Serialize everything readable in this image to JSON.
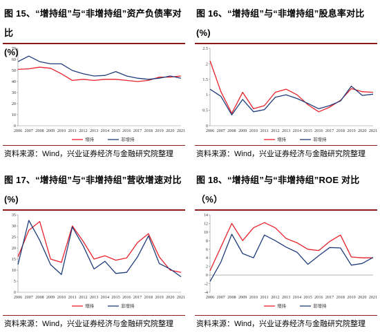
{
  "colors": {
    "series_a": "#e8202a",
    "series_b": "#1f3c7a",
    "rule": "#8b1a1a"
  },
  "source_label": "资料来源：Wind，兴业证券经济与金融研究院整理",
  "chart_data": [
    {
      "type": "line",
      "title_line1": "图 15、“增持组”与“非增持组”资产负债率对比",
      "title_line2": "(%)",
      "x": [
        "2006",
        "2007",
        "2008",
        "2009",
        "2010",
        "2011",
        "2012",
        "2013",
        "2014",
        "2015",
        "2016",
        "2017",
        "2018",
        "2019",
        "2020",
        "2021"
      ],
      "ylim": [
        0,
        70
      ],
      "yticks": [
        0,
        10,
        20,
        30,
        40,
        50,
        60,
        70
      ],
      "legend_position": "bottom",
      "series": [
        {
          "name": "增持",
          "values": [
            51,
            51.5,
            53,
            52,
            47,
            41,
            42,
            41,
            42,
            42,
            41,
            40,
            41,
            44,
            44,
            45
          ]
        },
        {
          "name": "非增持",
          "values": [
            58,
            63,
            58,
            56,
            56,
            50,
            47,
            45,
            45.5,
            49,
            45,
            43,
            42,
            43,
            45,
            43
          ]
        }
      ]
    },
    {
      "type": "line",
      "title_line1": "图 16、“增持组”与“非增持组”股息率对比",
      "title_line2": "(%)",
      "x": [
        "2006",
        "2007",
        "2008",
        "2009",
        "2010",
        "2011",
        "2012",
        "2013",
        "2014",
        "2015",
        "2016",
        "2017",
        "2018",
        "2019",
        "2020",
        "2021"
      ],
      "ylim": [
        0,
        2.5
      ],
      "yticks": [
        0,
        0.5,
        1,
        1.5,
        2,
        2.5
      ],
      "legend_position": "bottom",
      "series": [
        {
          "name": "增持",
          "values": [
            2.1,
            1.1,
            0.4,
            1.08,
            0.55,
            0.65,
            1.08,
            1.18,
            1.0,
            0.68,
            0.45,
            0.6,
            0.82,
            1.2,
            1.1,
            1.08
          ]
        },
        {
          "name": "非增持",
          "values": [
            1.18,
            0.95,
            0.35,
            0.85,
            0.45,
            0.52,
            0.92,
            1.0,
            0.88,
            0.72,
            0.55,
            0.65,
            0.8,
            1.28,
            0.98,
            1.02
          ]
        }
      ]
    },
    {
      "type": "line",
      "title_line1": "图 17、“增持组”与“非增持组”营收增速对比",
      "title_line2": "(%)",
      "x": [
        "2006",
        "2007",
        "2008",
        "2009",
        "2010",
        "2011",
        "2012",
        "2013",
        "2014",
        "2015",
        "2016",
        "2017",
        "2018",
        "2019",
        "2020",
        "2021"
      ],
      "ylim": [
        0,
        35
      ],
      "yticks": [
        0,
        5,
        10,
        15,
        20,
        25,
        30,
        35
      ],
      "legend_position": "bottom",
      "series": [
        {
          "name": "增持",
          "values": [
            16,
            28,
            32,
            15,
            13.5,
            30,
            23,
            15,
            16.5,
            14.5,
            15.5,
            22.5,
            26.5,
            16,
            10,
            9
          ]
        },
        {
          "name": "非增持",
          "values": [
            12.5,
            32.5,
            23.5,
            12.5,
            8,
            29.5,
            21,
            10.5,
            14,
            8.5,
            9,
            16,
            25.5,
            13,
            10.5,
            7
          ]
        }
      ]
    },
    {
      "type": "line",
      "title_line1": "图 18、“增持组”与“非增持组”ROE 对比（%）",
      "title_line2": "",
      "x": [
        "2006",
        "2007",
        "2008",
        "2009",
        "2010",
        "2011",
        "2012",
        "2013",
        "2014",
        "2015",
        "2016",
        "2017",
        "2018",
        "2019",
        "2020",
        "2021"
      ],
      "ylim": [
        -4,
        14
      ],
      "yticks": [
        -4,
        -2,
        0,
        2,
        4,
        6,
        8,
        10,
        12,
        14
      ],
      "legend_position": "bottom",
      "series": [
        {
          "name": "增持",
          "values": [
            1,
            6.5,
            12,
            8,
            11,
            12.2,
            11,
            8.5,
            7.5,
            6,
            5.7,
            7.8,
            9.3,
            4.2,
            4,
            4
          ]
        },
        {
          "name": "非增持",
          "values": [
            -1.5,
            3,
            9.5,
            5,
            4,
            9.3,
            8,
            6.5,
            5.3,
            2.5,
            4.5,
            6.4,
            6.3,
            2.3,
            2.7,
            4.1
          ]
        }
      ]
    }
  ]
}
